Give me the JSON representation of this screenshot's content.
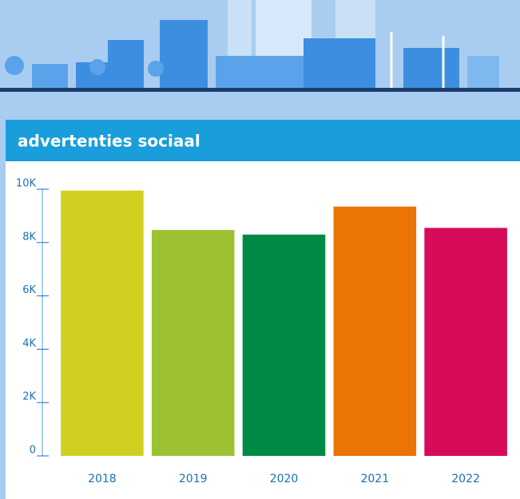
{
  "chart_data": {
    "type": "bar",
    "title": "advertenties sociaal",
    "categories": [
      "2018",
      "2019",
      "2020",
      "2021",
      "2022"
    ],
    "values": [
      9950,
      8470,
      8300,
      9350,
      8550
    ],
    "colors": [
      "#d0d021",
      "#9dc231",
      "#008a46",
      "#ec7404",
      "#d60b5a"
    ],
    "ylim": [
      0,
      10000
    ],
    "yticks": [
      0,
      {
        "value": 2000,
        "label": "2K"
      },
      {
        "value": 4000,
        "label": "4K"
      },
      {
        "value": 6000,
        "label": "6K"
      },
      {
        "value": 8000,
        "label": "8K"
      },
      {
        "value": 10000,
        "label": "10K"
      }
    ]
  }
}
